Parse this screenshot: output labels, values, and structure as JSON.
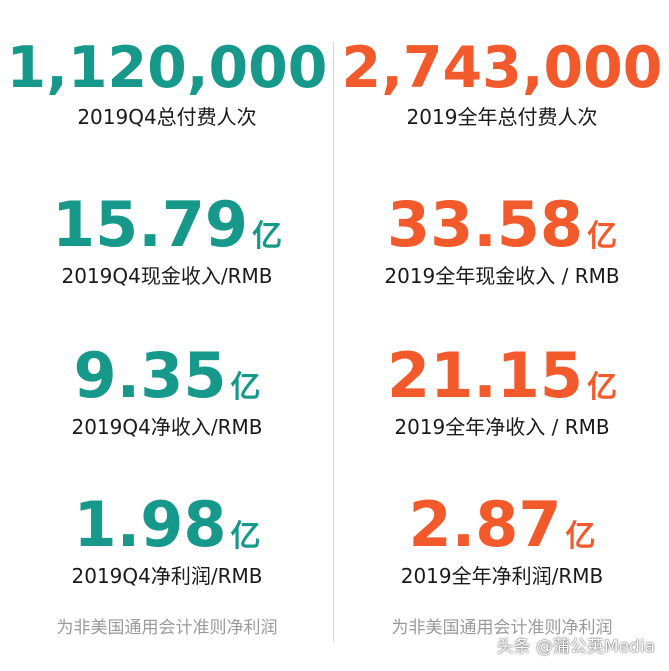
{
  "colors": {
    "left_accent": "#16988a",
    "right_accent": "#f25a2b",
    "label": "#1a1a1a",
    "note": "#9a9a9a"
  },
  "left": {
    "metric1": {
      "value": "1,120,000",
      "unit": "",
      "label": "2019Q4总付费人次"
    },
    "metric2": {
      "value": "15.79",
      "unit": "亿",
      "label": "2019Q4现金收入/RMB"
    },
    "metric3": {
      "value": "9.35",
      "unit": "亿",
      "label": "2019Q4净收入/RMB"
    },
    "metric4": {
      "value": "1.98",
      "unit": "亿",
      "label": "2019Q4净利润/RMB"
    },
    "note": "为非美国通用会计准则净利润"
  },
  "right": {
    "metric1": {
      "value": "2,743,000",
      "unit": "",
      "label": "2019全年总付费人次"
    },
    "metric2": {
      "value": "33.58",
      "unit": "亿",
      "label": "2019全年现金收入 / RMB"
    },
    "metric3": {
      "value": "21.15",
      "unit": "亿",
      "label": "2019全年净收入 / RMB"
    },
    "metric4": {
      "value": "2.87",
      "unit": "亿",
      "label": "2019全年净利润/RMB"
    },
    "note": "为非美国通用会计准则净利润"
  },
  "watermark": "头条 @蒲公英Media"
}
